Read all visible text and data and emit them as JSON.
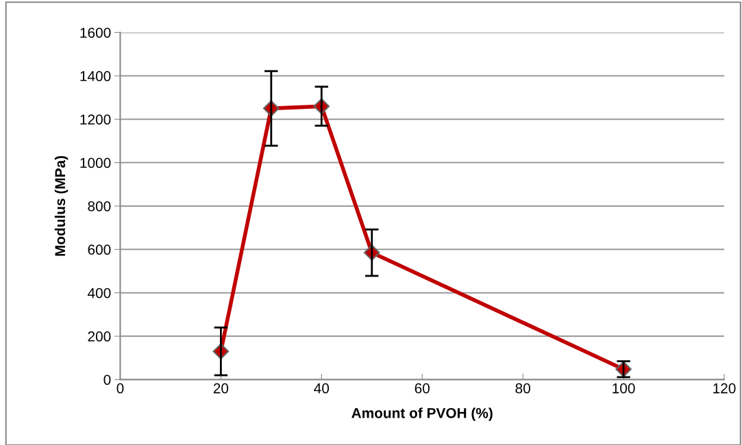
{
  "chart_data": {
    "type": "line",
    "xlabel": "Amount of PVOH (%)",
    "ylabel": "Modulus (MPa)",
    "x": [
      20,
      30,
      40,
      50,
      100
    ],
    "series": [
      {
        "color": "#c00000",
        "values": [
          130,
          1250,
          1260,
          585,
          48
        ],
        "errors": [
          110,
          172,
          90,
          107,
          37
        ]
      }
    ],
    "xlim": [
      0,
      120
    ],
    "xticks": [
      0,
      20,
      40,
      60,
      80,
      100,
      120
    ],
    "ylim": [
      0,
      1600
    ],
    "yticks": [
      0,
      200,
      400,
      600,
      800,
      1000,
      1200,
      1400,
      1600
    ],
    "grid": "y",
    "marker": "diamond",
    "line_style": "solid",
    "legend": false
  }
}
